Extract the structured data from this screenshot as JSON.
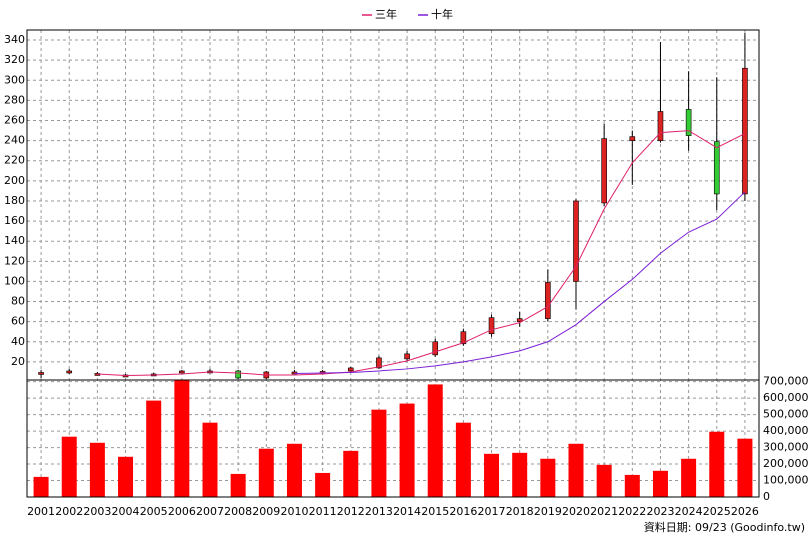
{
  "chart_data": [
    {
      "type": "candlestick",
      "categories": [
        "2001",
        "2002",
        "2003",
        "2004",
        "2005",
        "2006",
        "2007",
        "2008",
        "2009",
        "2010",
        "2011",
        "2012",
        "2013",
        "2014",
        "2015",
        "2016",
        "2017",
        "2018",
        "2019",
        "2020",
        "2021",
        "2022",
        "2023",
        "2024",
        "2025",
        "2026"
      ],
      "open": [
        9,
        10,
        8,
        7,
        7,
        10,
        11,
        11,
        4,
        9,
        10,
        11,
        14,
        23,
        27,
        38,
        48,
        60,
        63,
        100,
        178,
        240,
        240,
        271,
        239,
        187
      ],
      "high": [
        12,
        13,
        10,
        8,
        9,
        12,
        13,
        12,
        11,
        12,
        12,
        15,
        26,
        31,
        43,
        53,
        67,
        70,
        112,
        182,
        257,
        250,
        338,
        309,
        303,
        347
      ],
      "low": [
        4,
        8,
        7,
        6,
        6,
        9,
        10,
        3,
        3,
        8,
        9,
        10,
        13,
        21,
        25,
        36,
        45,
        55,
        60,
        72,
        175,
        196,
        238,
        230,
        171,
        180
      ],
      "close": [
        9.5,
        11,
        8.5,
        7,
        8,
        11,
        11,
        4,
        10,
        10,
        10.5,
        14,
        24,
        28,
        40,
        50,
        64,
        63,
        99,
        180,
        242,
        244,
        269,
        245,
        187,
        312
      ],
      "up_color": "#dd2222",
      "down_color": "#33cc33",
      "series": [
        {
          "name": "三年",
          "color": "#e0206a",
          "values": [
            null,
            null,
            8,
            6.5,
            7,
            8,
            10,
            9,
            7,
            7,
            8,
            10,
            15,
            21,
            30,
            39,
            52,
            59,
            75,
            115,
            172,
            218,
            248,
            250,
            233,
            247
          ]
        },
        {
          "name": "十年",
          "color": "#7a1fd6",
          "values": [
            null,
            null,
            null,
            null,
            null,
            null,
            null,
            null,
            null,
            8.5,
            9,
            9.5,
            11,
            13,
            16,
            20,
            25,
            31,
            40,
            57,
            80,
            102,
            128,
            149,
            162,
            189
          ]
        }
      ],
      "ylim": [
        2,
        350
      ],
      "yticks": [
        20,
        40,
        60,
        80,
        100,
        120,
        140,
        160,
        180,
        200,
        220,
        240,
        260,
        280,
        300,
        320,
        340
      ],
      "grid": true,
      "legend": "top"
    },
    {
      "type": "bar",
      "categories": [
        "2001",
        "2002",
        "2003",
        "2004",
        "2005",
        "2006",
        "2007",
        "2008",
        "2009",
        "2010",
        "2011",
        "2012",
        "2013",
        "2014",
        "2015",
        "2016",
        "2017",
        "2018",
        "2019",
        "2020",
        "2021",
        "2022",
        "2023",
        "2024",
        "2025",
        "2026"
      ],
      "values": [
        122000,
        366000,
        329000,
        244000,
        585000,
        708000,
        451000,
        140000,
        293000,
        323000,
        146000,
        280000,
        530000,
        567000,
        683000,
        451000,
        262000,
        268000,
        232000,
        323000,
        195000,
        134000,
        159000,
        232000,
        396000,
        354000
      ],
      "color": "#ff0000",
      "ylim": [
        0,
        710000
      ],
      "yticks": [
        0,
        {
          "value": 100000,
          "label": "100,000"
        },
        {
          "value": 200000,
          "label": "200,000"
        },
        {
          "value": 300000,
          "label": "300,000"
        },
        {
          "value": 400000,
          "label": "400,000"
        },
        {
          "value": 500000,
          "label": "500,000"
        },
        {
          "value": 600000,
          "label": "600,000"
        },
        {
          "value": 700000,
          "label": "700,000"
        }
      ],
      "grid": true
    }
  ],
  "footer": "資料日期: 09/23  (Goodinfo.tw)"
}
